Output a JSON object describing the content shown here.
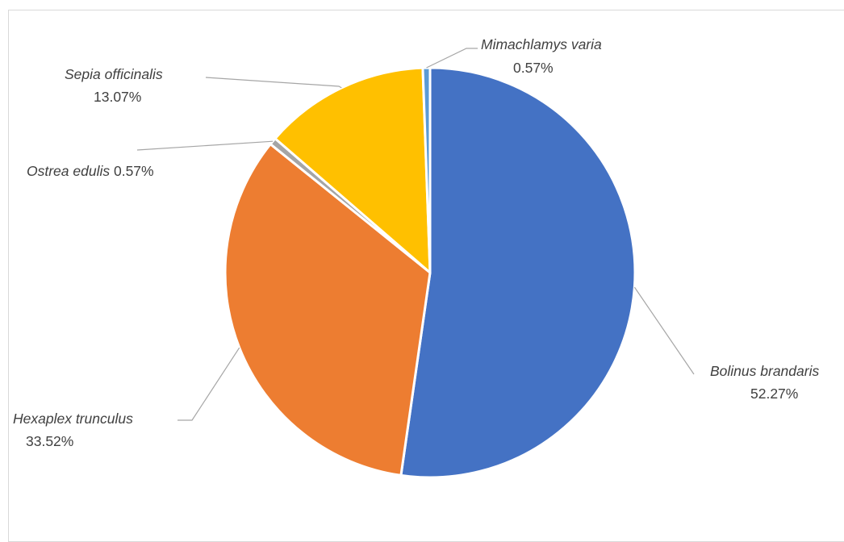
{
  "chart_data": {
    "type": "pie",
    "title": "",
    "slices": [
      {
        "label": "Bolinus brandaris",
        "value": 52.27,
        "display": "52.27%",
        "color": "#4472C4"
      },
      {
        "label": "Hexaplex trunculus",
        "value": 33.52,
        "display": "33.52%",
        "color": "#ED7D31"
      },
      {
        "label": "Ostrea edulis",
        "value": 0.57,
        "display": "0.57%",
        "color": "#A5A5A5"
      },
      {
        "label": "Sepia officinalis",
        "value": 13.07,
        "display": "13.07%",
        "color": "#FFC000"
      },
      {
        "label": "Mimachlamys varia",
        "value": 0.57,
        "display": "0.57%",
        "color": "#5B9BD5"
      }
    ],
    "start": "12 o'clock",
    "direction": "clockwise",
    "legend": "none"
  }
}
